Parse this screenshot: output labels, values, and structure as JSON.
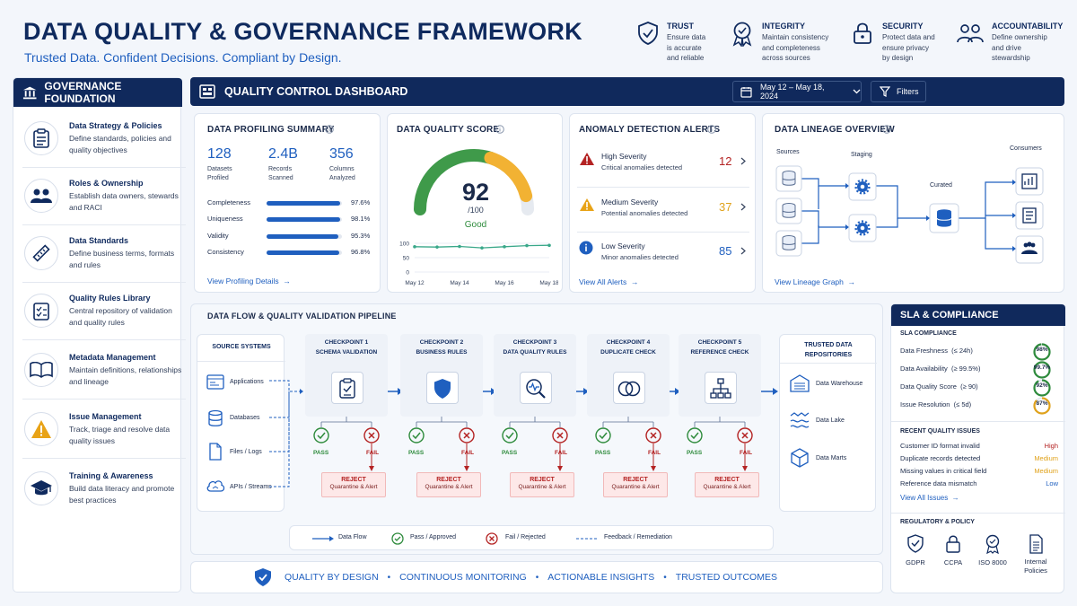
{
  "header": {
    "title": "DATA QUALITY & GOVERNANCE FRAMEWORK",
    "subtitle": "Trusted Data. Confident Decisions. Compliant by Design."
  },
  "pillars": [
    {
      "title": "TRUST",
      "desc": [
        "Ensure data",
        "is accurate",
        "and reliable"
      ],
      "icon": "shield-check-icon"
    },
    {
      "title": "INTEGRITY",
      "desc": [
        "Maintain consistency",
        "and completeness",
        "across sources"
      ],
      "icon": "award-badge-icon"
    },
    {
      "title": "SECURITY",
      "desc": [
        "Protect data and",
        "ensure privacy",
        "by design"
      ],
      "icon": "padlock-icon"
    },
    {
      "title": "ACCOUNTABILITY",
      "desc": [
        "Define ownership",
        "and drive",
        "stewardship"
      ],
      "icon": "people-icon"
    }
  ],
  "governance": {
    "title": "GOVERNANCE FOUNDATION",
    "items": [
      {
        "title": "Data Strategy & Policies",
        "desc": "Define standards, policies and quality objectives"
      },
      {
        "title": "Roles & Ownership",
        "desc": "Establish data owners, stewards and RACI"
      },
      {
        "title": "Data Standards",
        "desc": "Define business terms, formats and rules"
      },
      {
        "title": "Quality Rules Library",
        "desc": "Central repository of validation and quality rules"
      },
      {
        "title": "Metadata Management",
        "desc": "Maintain definitions, relationships and lineage"
      },
      {
        "title": "Issue Management",
        "desc": "Track, triage and resolve data quality issues"
      },
      {
        "title": "Training & Awareness",
        "desc": "Build data literacy and promote best practices"
      }
    ]
  },
  "dashboard": {
    "title": "QUALITY CONTROL DASHBOARD",
    "date_range": "May 12 – May 18, 2024",
    "filters_label": "Filters"
  },
  "profiling": {
    "title": "DATA PROFILING SUMMARY",
    "stats": [
      {
        "value": "128",
        "label": [
          "Datasets",
          "Profiled"
        ]
      },
      {
        "value": "2.4B",
        "label": [
          "Records",
          "Scanned"
        ]
      },
      {
        "value": "356",
        "label": [
          "Columns",
          "Analyzed"
        ]
      }
    ],
    "metrics": [
      {
        "name": "Completeness",
        "value": "97.6%",
        "pct": 97.6
      },
      {
        "name": "Uniqueness",
        "value": "98.1%",
        "pct": 98.1
      },
      {
        "name": "Validity",
        "value": "95.3%",
        "pct": 95.3
      },
      {
        "name": "Consistency",
        "value": "96.8%",
        "pct": 96.8
      }
    ],
    "link": "View Profiling Details"
  },
  "score": {
    "title": "DATA QUALITY SCORE",
    "value": "92",
    "denom": "/100",
    "status": "Good",
    "gauge_fraction": 0.92
  },
  "chart_data": {
    "type": "line",
    "x": [
      "May 12",
      "May 13",
      "May 14",
      "May 15",
      "May 16",
      "May 17",
      "May 18"
    ],
    "x_tick_labels": [
      "May 12",
      "May 14",
      "May 16",
      "May 18"
    ],
    "values": [
      88,
      87,
      89,
      84,
      88,
      92,
      93
    ],
    "ylim": [
      0,
      100
    ],
    "y_ticks": [
      "100",
      "50",
      "0"
    ],
    "grid": true
  },
  "alerts": {
    "title": "ANOMALY DETECTION ALERTS",
    "items": [
      {
        "level": "High Severity",
        "desc": "Critical anomalies detected",
        "count": "12",
        "color": "#b42323"
      },
      {
        "level": "Medium Severity",
        "desc": "Potential anomalies detected",
        "count": "37",
        "color": "#e0a21b"
      },
      {
        "level": "Low Severity",
        "desc": "Minor anomalies detected",
        "count": "85",
        "color": "#1f5fbf"
      }
    ],
    "link": "View All Alerts"
  },
  "lineage": {
    "title": "DATA LINEAGE OVERVIEW",
    "sources": "Sources",
    "staging": "Staging",
    "curated": "Curated",
    "consumers": "Consumers",
    "link": "View Lineage Graph"
  },
  "pipeline": {
    "title": "DATA FLOW & QUALITY VALIDATION PIPELINE",
    "source_title": "SOURCE SYSTEMS",
    "sources": [
      "Applications",
      "Databases",
      "Files / Logs",
      "APIs / Streams"
    ],
    "checkpoints": [
      {
        "label": "CHECKPOINT 1",
        "name": "SCHEMA VALIDATION"
      },
      {
        "label": "CHECKPOINT 2",
        "name": "BUSINESS RULES"
      },
      {
        "label": "CHECKPOINT 3",
        "name": "DATA QUALITY RULES"
      },
      {
        "label": "CHECKPOINT 4",
        "name": "DUPLICATE CHECK"
      },
      {
        "label": "CHECKPOINT 5",
        "name": "REFERENCE CHECK"
      }
    ],
    "pass": "PASS",
    "fail": "FAIL",
    "reject": "REJECT",
    "reject_sub": "Quarantine & Alert",
    "repo_title": [
      "TRUSTED DATA",
      "REPOSITORIES"
    ],
    "repos": [
      "Data Warehouse",
      "Data Lake",
      "Data Marts"
    ],
    "legend": [
      "Data Flow",
      "Pass / Approved",
      "Fail / Rejected",
      "Feedback / Remediation"
    ]
  },
  "sla": {
    "title": "SLA & COMPLIANCE",
    "compliance_title": "SLA COMPLIANCE",
    "rows": [
      {
        "name": "Data Freshness",
        "target": "(≤ 24h)",
        "value": "98%",
        "pct": 98,
        "color": "#2e8b3c"
      },
      {
        "name": "Data Availability",
        "target": "(≥ 99.5%)",
        "value": "99.7%",
        "pct": 99.7,
        "color": "#2e8b3c"
      },
      {
        "name": "Data Quality Score",
        "target": "(≥ 90)",
        "value": "92%",
        "pct": 92,
        "color": "#2e8b3c"
      },
      {
        "name": "Issue Resolution",
        "target": "(≤ 5d)",
        "value": "87%",
        "pct": 87,
        "color": "#e0a21b"
      }
    ],
    "issues_title": "RECENT QUALITY ISSUES",
    "issues": [
      {
        "name": "Customer ID format invalid",
        "level": "High",
        "color": "#b42323"
      },
      {
        "name": "Duplicate records detected",
        "level": "Medium",
        "color": "#e0a21b"
      },
      {
        "name": "Missing values in critical field",
        "level": "Medium",
        "color": "#e0a21b"
      },
      {
        "name": "Reference data mismatch",
        "level": "Low",
        "color": "#1f5fbf"
      }
    ],
    "issues_link": "View All Issues",
    "policy_title": "REGULATORY & POLICY",
    "policies": [
      {
        "name": [
          "GDPR"
        ],
        "icon": "shield-check-icon"
      },
      {
        "name": [
          "CCPA"
        ],
        "icon": "padlock-icon"
      },
      {
        "name": [
          "ISO 8000"
        ],
        "icon": "award-badge-icon"
      },
      {
        "name": [
          "Internal",
          "Policies"
        ],
        "icon": "document-icon"
      }
    ]
  },
  "footer": {
    "items": [
      "QUALITY BY DESIGN",
      "CONTINUOUS MONITORING",
      "ACTIONABLE INSIGHTS",
      "TRUSTED OUTCOMES"
    ],
    "separator": "•"
  },
  "colors": {
    "navy": "#10295c",
    "accent": "#1f5fbf",
    "green": "#2e8b3c",
    "amber": "#e0a21b",
    "red": "#b42323"
  }
}
